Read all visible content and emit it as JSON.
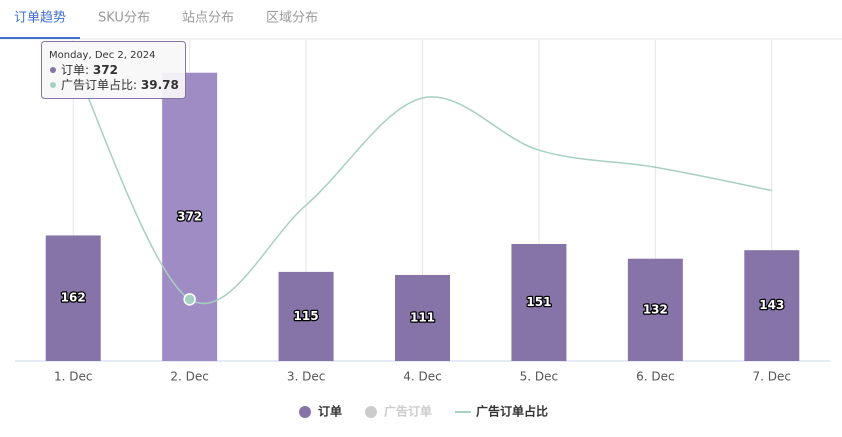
{
  "tabs": [
    "订单趋势",
    "SKU分布",
    "站点分布",
    "区域分布"
  ],
  "active_tab": 0,
  "chart_data": {
    "type": "bar",
    "categories": [
      "1. Dec",
      "2. Dec",
      "3. Dec",
      "4. Dec",
      "5. Dec",
      "6. Dec",
      "7. Dec"
    ],
    "ylim": [
      0,
      400
    ],
    "y2lim": [
      0,
      200
    ],
    "series": [
      {
        "name": "订单",
        "type": "bar",
        "color": "#8674a9",
        "values": [
          162,
          372,
          115,
          111,
          151,
          132,
          143
        ]
      },
      {
        "name": "广告订单",
        "type": "bar",
        "color": "#cccccc",
        "hidden": true,
        "values": [
          null,
          null,
          null,
          null,
          null,
          null,
          null
        ]
      },
      {
        "name": "广告订单占比",
        "type": "line",
        "axis": "y2",
        "color": "#a8cfc3",
        "values": [
          193,
          39.78,
          100.6,
          169.7,
          136,
          125,
          110
        ]
      }
    ],
    "tooltip": {
      "title": "Monday, Dec 2, 2024",
      "rows": [
        {
          "label": "订单:",
          "series": 0
        },
        {
          "label": "广告订单占比:",
          "series": 2
        }
      ]
    }
  }
}
